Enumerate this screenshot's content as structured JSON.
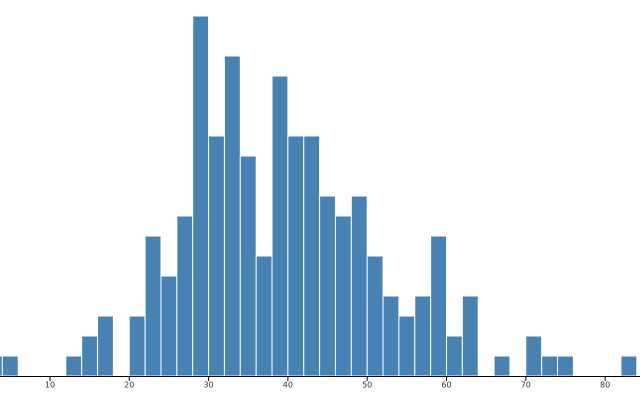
{
  "chart_data": {
    "type": "histogram",
    "bins": [
      2,
      4,
      6,
      8,
      10,
      12,
      14,
      16,
      18,
      20,
      22,
      24,
      26,
      28,
      30,
      32,
      34,
      36,
      38,
      40,
      42,
      44,
      46,
      48,
      50,
      52,
      54,
      56,
      58,
      60,
      62,
      64,
      66,
      68,
      70,
      72,
      74,
      76,
      78,
      80,
      82,
      84
    ],
    "values": [
      1,
      1,
      0,
      0,
      0,
      1,
      2,
      3,
      0,
      3,
      7,
      5,
      8,
      18,
      12,
      16,
      11,
      6,
      15,
      12,
      12,
      9,
      8,
      9,
      6,
      4,
      3,
      4,
      7,
      2,
      4,
      0,
      1,
      0,
      2,
      1,
      1,
      0,
      0,
      0,
      1
    ],
    "color": "#4682b4",
    "xlim": [
      3.7,
      84.4
    ],
    "xticks": [
      10,
      20,
      30,
      40,
      50,
      60,
      70,
      80
    ],
    "ylim": [
      0,
      18
    ]
  }
}
